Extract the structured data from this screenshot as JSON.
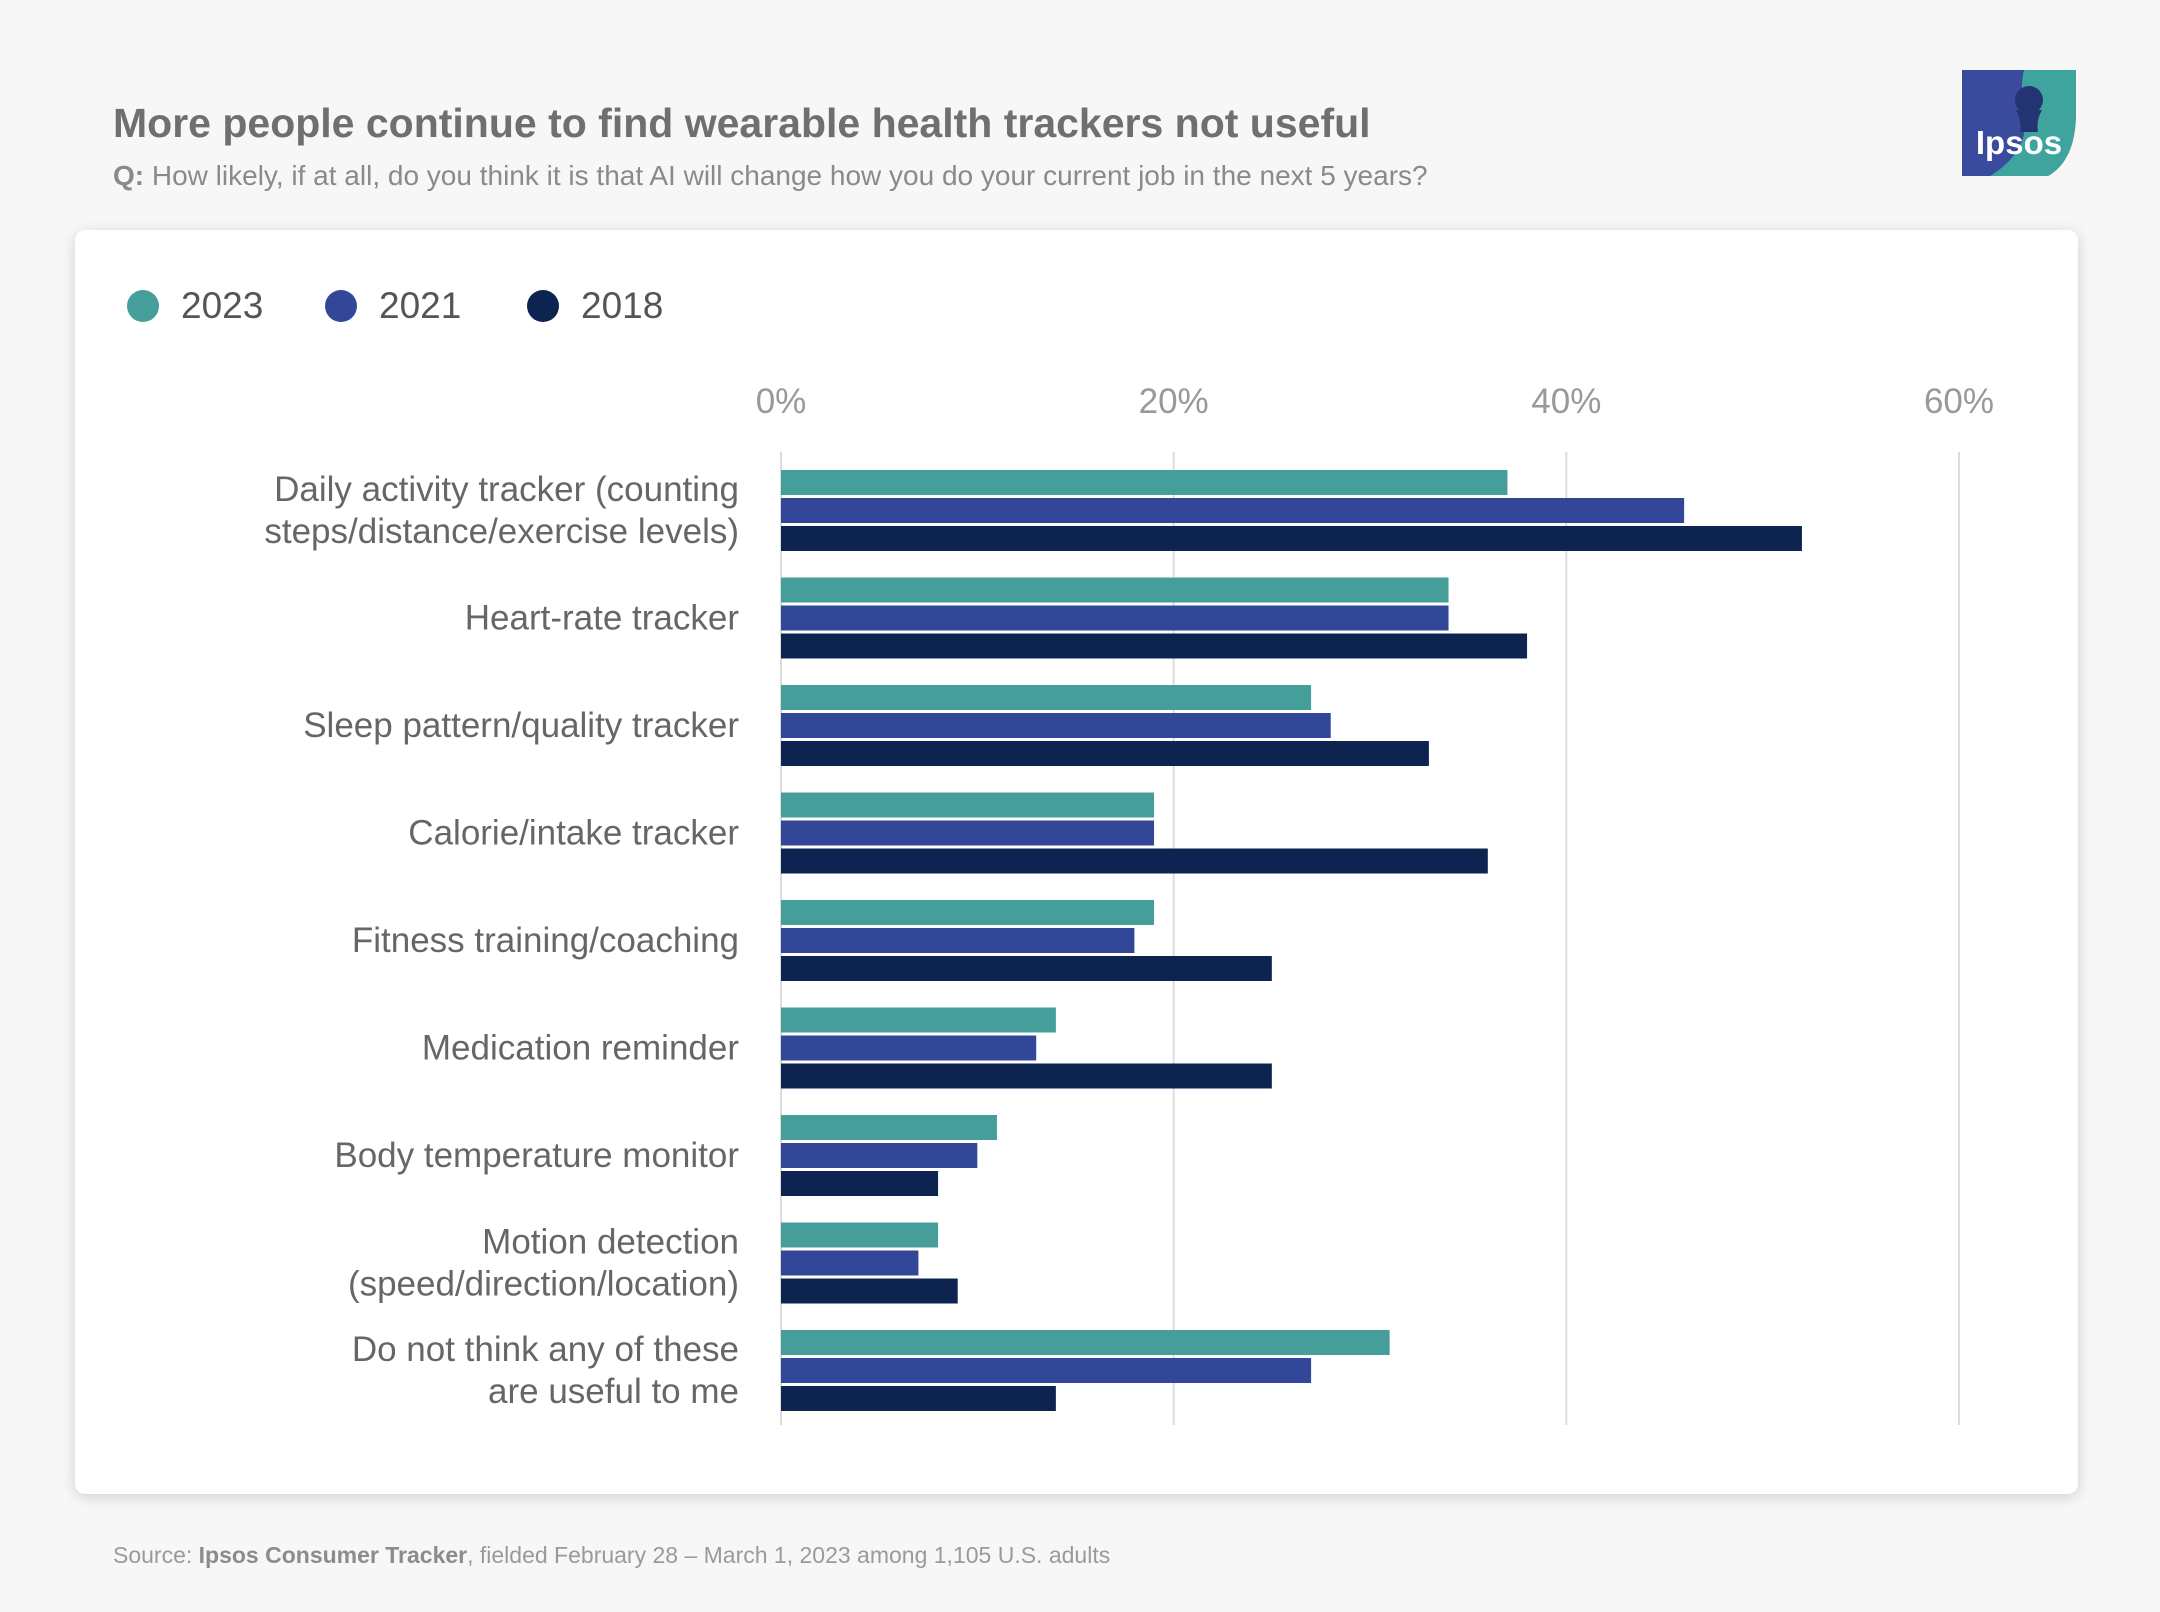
{
  "header": {
    "title": "More people continue to find wearable health trackers not useful",
    "question_prefix": "Q:",
    "question": "How likely, if at all, do you think it is that AI will change how you do your current job in the next 5 years?"
  },
  "logo": {
    "text": "Ipsos",
    "icon": "ipsos-logo-icon"
  },
  "colors": {
    "s2023": "#469e9b",
    "s2021": "#334799",
    "s2018": "#0d2451",
    "grid": "#dcdcdc",
    "label": "#666666",
    "tick": "#999999"
  },
  "chart_data": {
    "type": "bar",
    "orientation": "horizontal",
    "title": "More people continue to find wearable health trackers not useful",
    "xlim": [
      0,
      60
    ],
    "xticks": [
      0,
      20,
      40,
      60
    ],
    "xtick_labels": [
      "0%",
      "20%",
      "40%",
      "60%"
    ],
    "grid": true,
    "legend_position": "top-left",
    "categories": [
      [
        "Daily activity tracker (counting",
        "steps/distance/exercise levels)"
      ],
      [
        "Heart-rate tracker"
      ],
      [
        "Sleep pattern/quality tracker"
      ],
      [
        "Calorie/intake tracker"
      ],
      [
        "Fitness training/coaching"
      ],
      [
        "Medication reminder"
      ],
      [
        "Body temperature monitor"
      ],
      [
        "Motion detection",
        "(speed/direction/location)"
      ],
      [
        "Do not think any of these",
        "are useful to me"
      ]
    ],
    "series": [
      {
        "name": "2023",
        "color": "#469e9b",
        "values": [
          37,
          34,
          27,
          19,
          19,
          14,
          11,
          8,
          31
        ]
      },
      {
        "name": "2021",
        "color": "#334799",
        "values": [
          46,
          34,
          28,
          19,
          18,
          13,
          10,
          7,
          27
        ]
      },
      {
        "name": "2018",
        "color": "#0d2451",
        "values": [
          52,
          38,
          33,
          36,
          25,
          25,
          8,
          9,
          14
        ]
      }
    ]
  },
  "footer": {
    "source_prefix": "Source:",
    "source_name": "Ipsos Consumer Tracker",
    "source_rest": ", fielded February 28 – March 1, 2023 among 1,105 U.S. adults"
  }
}
